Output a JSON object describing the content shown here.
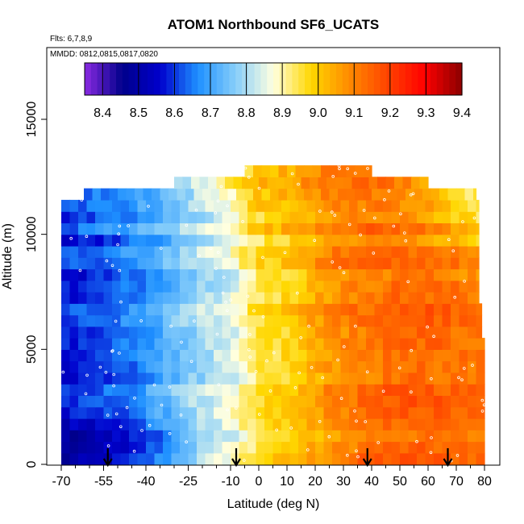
{
  "chart_data": {
    "type": "heatmap",
    "title": "ATOM1 Northbound SF6_UCATS",
    "flights_note": "Flts: 6,7,8,9",
    "dates_note": "MMDD: 0812,0815,0817,0820",
    "xlabel": "Latitude (deg N)",
    "ylabel": "Altitude (m)",
    "xlim": [
      -70,
      80
    ],
    "ylim": [
      0,
      17500
    ],
    "x_tick_labels": [
      "-70",
      "-55",
      "-40",
      "-25",
      "-10",
      "0",
      "10",
      "20",
      "30",
      "40",
      "50",
      "60",
      "70",
      "80"
    ],
    "x_tick_values": [
      -70,
      -55,
      -40,
      -25,
      -10,
      0,
      10,
      20,
      30,
      40,
      50,
      60,
      70,
      80
    ],
    "y_tick_labels": [
      "0",
      "5000",
      "10000",
      "15000"
    ],
    "y_tick_values": [
      0,
      5000,
      10000,
      15000
    ],
    "colorbar": {
      "min": 8.35,
      "max": 9.4,
      "tick_labels": [
        "8.4",
        "8.5",
        "8.6",
        "8.7",
        "8.8",
        "8.9",
        "9.0",
        "9.1",
        "9.2",
        "9.3",
        "9.4"
      ],
      "tick_values": [
        8.4,
        8.5,
        8.6,
        8.7,
        8.8,
        8.9,
        9.0,
        9.1,
        9.2,
        9.3,
        9.4
      ],
      "colors": [
        "#8a2be2",
        "#00008b",
        "#0000cd",
        "#1e90ff",
        "#87cefa",
        "#ffffe0",
        "#ffd700",
        "#ff8c00",
        "#ff4500",
        "#ff0000",
        "#8b0000"
      ]
    },
    "markers_latitude": [
      -53.5,
      -8,
      38.5,
      67
    ],
    "altitude_bins": [
      0,
      500,
      1000,
      1500,
      2000,
      2500,
      3000,
      3500,
      4000,
      4500,
      5000,
      5500,
      6000,
      6500,
      7000,
      7500,
      8000,
      8500,
      9000,
      9500,
      10000,
      10500,
      11000,
      11500,
      12000,
      12500,
      13000
    ],
    "extent": {
      "bin_xmin": [
        -70,
        -70,
        -70,
        -70,
        -70,
        -70,
        -70,
        -70,
        -70,
        -70,
        -70,
        -70,
        -70,
        -70,
        -70,
        -70,
        -70,
        -70,
        -70,
        -70,
        -70,
        -70,
        -70,
        -62,
        -30,
        -5
      ],
      "bin_xmax": [
        80,
        80,
        80,
        80,
        80,
        80,
        80,
        80,
        80,
        80,
        80,
        79,
        79,
        79,
        78,
        78,
        78,
        78,
        78,
        78,
        78,
        78,
        78,
        77,
        60,
        40
      ]
    },
    "profile_lat": [
      -70,
      -55,
      -40,
      -25,
      -10,
      0,
      10,
      20,
      30,
      40,
      50,
      60,
      70,
      80
    ],
    "profile_upper": [
      8.6,
      8.65,
      8.7,
      8.78,
      8.9,
      9.0,
      9.02,
      9.08,
      9.1,
      9.1,
      9.08,
      9.02,
      8.95,
      8.9
    ],
    "profile_mid": [
      8.58,
      8.62,
      8.68,
      8.78,
      8.85,
      8.95,
      8.98,
      9.05,
      9.1,
      9.12,
      9.15,
      9.15,
      9.13,
      9.12
    ],
    "profile_low": [
      8.45,
      8.5,
      8.6,
      8.75,
      8.88,
      8.97,
      9.0,
      9.05,
      9.1,
      9.15,
      9.15,
      9.15,
      9.14,
      9.13
    ]
  }
}
